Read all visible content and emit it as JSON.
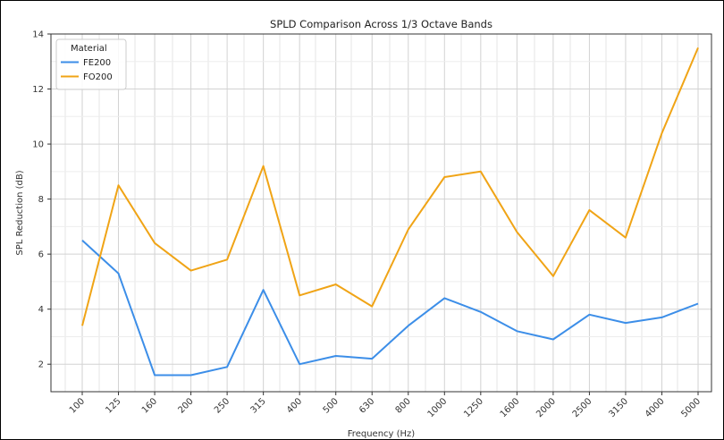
{
  "chart_data": {
    "type": "line",
    "title": "SPLD Comparison Across 1/3 Octave Bands",
    "xlabel": "Frequency (Hz)",
    "ylabel": "SPL Reduction (dB)",
    "categories": [
      "100",
      "125",
      "160",
      "200",
      "250",
      "315",
      "400",
      "500",
      "630",
      "800",
      "1000",
      "1250",
      "1600",
      "2000",
      "2500",
      "3150",
      "4000",
      "5000"
    ],
    "ylim": [
      1,
      14
    ],
    "yticks": [
      "2",
      "4",
      "6",
      "8",
      "10",
      "12",
      "14"
    ],
    "grid": true,
    "legend": {
      "title": "Material",
      "position": "top-left"
    },
    "series": [
      {
        "name": "FE200",
        "color": "#3c8ee8",
        "values": [
          6.5,
          5.3,
          1.6,
          1.6,
          1.9,
          4.7,
          2.0,
          2.3,
          2.2,
          3.4,
          4.4,
          3.9,
          3.2,
          2.9,
          3.8,
          3.5,
          3.7,
          4.2
        ]
      },
      {
        "name": "FO200",
        "color": "#f0a416",
        "values": [
          3.4,
          8.5,
          6.4,
          5.4,
          5.8,
          9.2,
          4.5,
          4.9,
          4.1,
          6.9,
          8.8,
          9.0,
          6.8,
          5.2,
          7.6,
          6.6,
          10.4,
          13.5
        ]
      }
    ]
  }
}
